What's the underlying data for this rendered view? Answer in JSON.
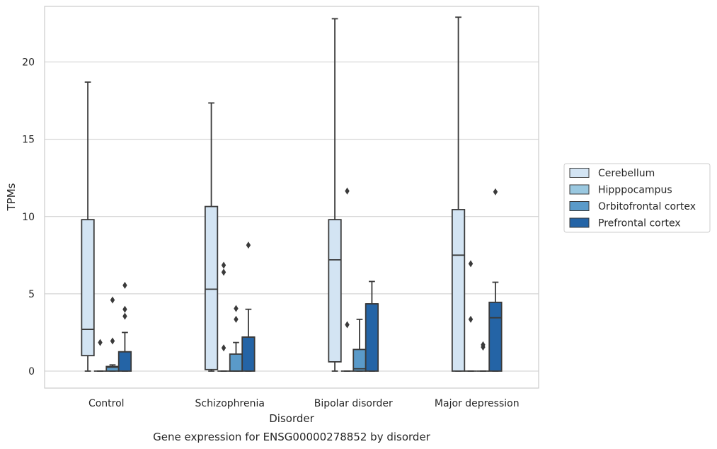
{
  "chart_data": {
    "type": "box",
    "title": "Gene expression for ENSG00000278852 by disorder",
    "xlabel": "Disorder",
    "ylabel": "TPMs",
    "ylim": [
      -1.1,
      23.6
    ],
    "yticks": [
      0,
      5,
      10,
      15,
      20
    ],
    "grid": "horizontal",
    "legend_position": "right",
    "categories": [
      "Control",
      "Schizophrenia",
      "Bipolar disorder",
      "Major depression"
    ],
    "series": [
      {
        "name": "Cerebellum",
        "color": "#d3e4f3",
        "boxes": [
          {
            "whislo": 0.0,
            "q1": 1.0,
            "med": 2.7,
            "q3": 9.8,
            "whishi": 18.7,
            "fliers": []
          },
          {
            "whislo": 0.0,
            "q1": 0.1,
            "med": 5.3,
            "q3": 10.65,
            "whishi": 17.35,
            "fliers": []
          },
          {
            "whislo": 0.0,
            "q1": 0.6,
            "med": 7.2,
            "q3": 9.8,
            "whishi": 22.8,
            "fliers": []
          },
          {
            "whislo": 0.0,
            "q1": 0.0,
            "med": 7.5,
            "q3": 10.45,
            "whishi": 22.9,
            "fliers": []
          }
        ]
      },
      {
        "name": "Hipppocampus",
        "color": "#9ac8e0",
        "boxes": [
          {
            "whislo": 0.0,
            "q1": 0.0,
            "med": 0.0,
            "q3": 0.0,
            "whishi": 0.0,
            "fliers": [
              1.85
            ]
          },
          {
            "whislo": 0.0,
            "q1": 0.0,
            "med": 0.0,
            "q3": 0.0,
            "whishi": 0.0,
            "fliers": [
              1.5,
              6.4,
              6.85
            ]
          },
          {
            "whislo": 0.0,
            "q1": 0.0,
            "med": 0.0,
            "q3": 0.0,
            "whishi": 0.0,
            "fliers": [
              3.0,
              11.65
            ]
          },
          {
            "whislo": 0.0,
            "q1": 0.0,
            "med": 0.0,
            "q3": 0.0,
            "whishi": 0.0,
            "fliers": [
              3.35,
              6.95
            ]
          }
        ]
      },
      {
        "name": "Orbitofrontal cortex",
        "color": "#5a9ac9",
        "boxes": [
          {
            "whislo": 0.0,
            "q1": 0.0,
            "med": 0.25,
            "q3": 0.3,
            "whishi": 0.4,
            "fliers": [
              1.95,
              4.6
            ]
          },
          {
            "whislo": 0.0,
            "q1": 0.0,
            "med": 0.0,
            "q3": 1.1,
            "whishi": 1.85,
            "fliers": [
              3.35,
              4.05
            ]
          },
          {
            "whislo": 0.0,
            "q1": 0.0,
            "med": 0.15,
            "q3": 1.4,
            "whishi": 3.35,
            "fliers": []
          },
          {
            "whislo": 0.0,
            "q1": 0.0,
            "med": 0.0,
            "q3": 0.0,
            "whishi": 0.0,
            "fliers": [
              1.55,
              1.7
            ]
          }
        ]
      },
      {
        "name": "Prefrontal cortex",
        "color": "#2464a6",
        "boxes": [
          {
            "whislo": 0.0,
            "q1": 0.0,
            "med": 1.25,
            "q3": 1.25,
            "whishi": 2.5,
            "fliers": [
              3.55,
              4.0,
              5.55
            ]
          },
          {
            "whislo": 0.0,
            "q1": 0.0,
            "med": 2.2,
            "q3": 2.2,
            "whishi": 4.0,
            "fliers": [
              8.15
            ]
          },
          {
            "whislo": 0.0,
            "q1": 0.0,
            "med": 4.35,
            "q3": 4.35,
            "whishi": 5.8,
            "fliers": []
          },
          {
            "whislo": 0.0,
            "q1": 0.0,
            "med": 3.45,
            "q3": 4.45,
            "whishi": 5.75,
            "fliers": [
              11.6
            ]
          }
        ]
      }
    ]
  }
}
